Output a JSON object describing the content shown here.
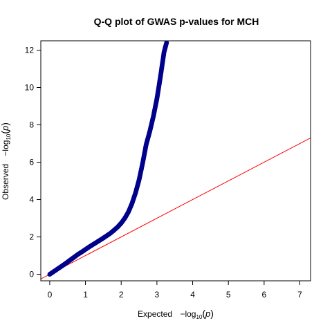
{
  "chart_data": {
    "type": "scatter",
    "title": "Q-Q plot of GWAS p-values for MCH",
    "xlabel": {
      "text": "Expected",
      "formula": {
        "prefix": "−log",
        "sub": "10",
        "open": "(",
        "var": "p",
        "close": ")"
      }
    },
    "ylabel": {
      "text": "Observed",
      "formula": {
        "prefix": "−log",
        "sub": "10",
        "open": "(",
        "var": "p",
        "close": ")"
      }
    },
    "xlim": [
      -0.25,
      7.3
    ],
    "ylim": [
      -0.35,
      12.5
    ],
    "xticks": [
      "0",
      "1",
      "2",
      "3",
      "4",
      "5",
      "6",
      "7"
    ],
    "yticks": [
      "0",
      "2",
      "4",
      "6",
      "8",
      "10",
      "12"
    ],
    "grid": false,
    "reference_line": {
      "slope": 1,
      "intercept": 0,
      "color": "#ff0000"
    },
    "point_color": "#00008b",
    "series": [
      {
        "points": [
          [
            0.0,
            0.0
          ],
          [
            0.1,
            0.13
          ],
          [
            0.2,
            0.26
          ],
          [
            0.3,
            0.39
          ],
          [
            0.4,
            0.52
          ],
          [
            0.5,
            0.66
          ],
          [
            0.6,
            0.8
          ],
          [
            0.7,
            0.94
          ],
          [
            0.8,
            1.08
          ],
          [
            0.9,
            1.2
          ],
          [
            1.0,
            1.33
          ],
          [
            1.1,
            1.46
          ],
          [
            1.2,
            1.58
          ],
          [
            1.3,
            1.7
          ],
          [
            1.4,
            1.82
          ],
          [
            1.5,
            1.94
          ],
          [
            1.6,
            2.07
          ],
          [
            1.7,
            2.2
          ],
          [
            1.8,
            2.36
          ],
          [
            1.9,
            2.53
          ],
          [
            2.0,
            2.74
          ],
          [
            2.1,
            3.0
          ],
          [
            2.2,
            3.33
          ],
          [
            2.3,
            3.78
          ],
          [
            2.4,
            4.35
          ],
          [
            2.5,
            5.05
          ],
          [
            2.6,
            5.95
          ],
          [
            2.7,
            6.95
          ],
          [
            2.8,
            7.65
          ],
          [
            2.9,
            8.45
          ],
          [
            3.0,
            9.4
          ],
          [
            3.1,
            10.6
          ],
          [
            3.2,
            11.9
          ],
          [
            3.27,
            12.4
          ]
        ]
      }
    ]
  }
}
